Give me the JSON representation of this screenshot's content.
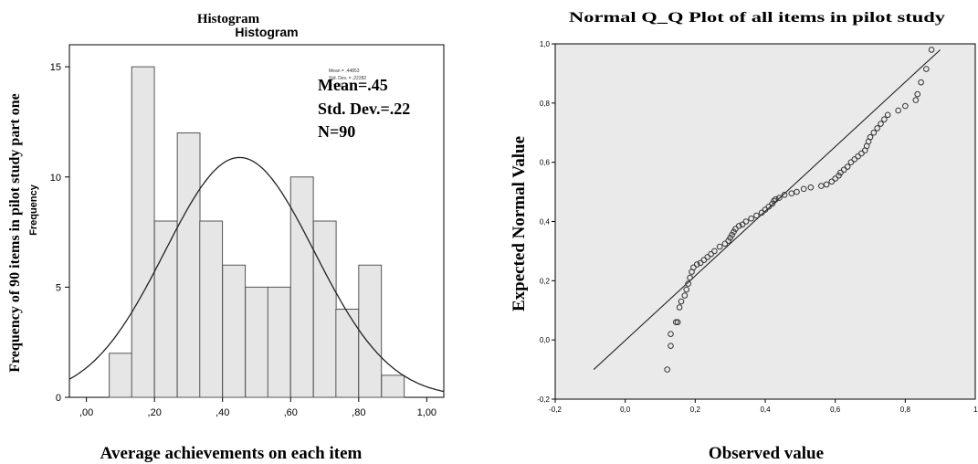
{
  "chart_data": [
    {
      "type": "bar",
      "subtype": "histogram",
      "title": "Histogram",
      "inner_title": "Histogram",
      "xlabel": "Average achievements on each item",
      "ylabel": "Frequency of 90 items in pilot study part one",
      "inner_ylabel": "Frequency",
      "xlim": [
        -0.05,
        1.05
      ],
      "ylim": [
        0,
        16
      ],
      "xticks": [
        0,
        0.2,
        0.4,
        0.6,
        0.8,
        1.0
      ],
      "xtick_labels": [
        ",00",
        ",20",
        ",40",
        ",60",
        ",80",
        "1,00"
      ],
      "yticks": [
        0,
        5,
        10,
        15
      ],
      "ytick_labels": [
        "0",
        "5",
        "10",
        "15"
      ],
      "bin_width": 0.0667,
      "bins": [
        {
          "start": 0.067,
          "value": 2
        },
        {
          "start": 0.133,
          "value": 15
        },
        {
          "start": 0.2,
          "value": 8
        },
        {
          "start": 0.267,
          "value": 12
        },
        {
          "start": 0.333,
          "value": 8
        },
        {
          "start": 0.4,
          "value": 6
        },
        {
          "start": 0.467,
          "value": 5
        },
        {
          "start": 0.533,
          "value": 5
        },
        {
          "start": 0.6,
          "value": 10
        },
        {
          "start": 0.667,
          "value": 8
        },
        {
          "start": 0.733,
          "value": 4
        },
        {
          "start": 0.8,
          "value": 6
        },
        {
          "start": 0.867,
          "value": 1
        }
      ],
      "normal_curve": {
        "mean": 0.45,
        "sd": 0.22,
        "n": 90
      },
      "annotations": [
        "Mean=.45",
        "Std. Dev.=.22",
        "N=90"
      ],
      "small_annotations": [
        "Mean = ,44853",
        "Std. Dev. = ,22282",
        "N = 90"
      ],
      "colors": {
        "bar_fill": "#e6e6e6",
        "bar_stroke": "#555555"
      }
    },
    {
      "type": "scatter",
      "subtype": "normal-qq",
      "title": "Normal Q_Q Plot of all items in pilot study",
      "xlabel": "Observed value",
      "ylabel": "Expected Normal Value",
      "xlim": [
        -0.2,
        1.0
      ],
      "ylim": [
        -0.2,
        1.0
      ],
      "xticks": [
        -0.2,
        0,
        0.2,
        0.4,
        0.6,
        0.8
      ],
      "xtick_labels": [
        "-0,2",
        "0,0",
        "0,2",
        "0,4",
        "0,6",
        "0,8"
      ],
      "xtick_cut_label": "1,",
      "yticks": [
        -0.2,
        0,
        0.2,
        0.4,
        0.6,
        0.8,
        1.0
      ],
      "ytick_labels": [
        "-0,2",
        "0,0",
        "0,2",
        "0,4",
        "0,6",
        "0,8",
        "1,0"
      ],
      "reference_line": {
        "from": [
          -0.09,
          -0.1
        ],
        "to": [
          0.9,
          0.98
        ]
      },
      "points": [
        [
          0.12,
          -0.1
        ],
        [
          0.13,
          -0.02
        ],
        [
          0.13,
          0.02
        ],
        [
          0.145,
          0.06
        ],
        [
          0.15,
          0.06
        ],
        [
          0.155,
          0.11
        ],
        [
          0.16,
          0.13
        ],
        [
          0.17,
          0.15
        ],
        [
          0.175,
          0.17
        ],
        [
          0.18,
          0.19
        ],
        [
          0.185,
          0.21
        ],
        [
          0.19,
          0.23
        ],
        [
          0.195,
          0.245
        ],
        [
          0.205,
          0.255
        ],
        [
          0.215,
          0.26
        ],
        [
          0.225,
          0.27
        ],
        [
          0.235,
          0.28
        ],
        [
          0.245,
          0.29
        ],
        [
          0.255,
          0.3
        ],
        [
          0.27,
          0.315
        ],
        [
          0.285,
          0.325
        ],
        [
          0.295,
          0.335
        ],
        [
          0.3,
          0.345
        ],
        [
          0.305,
          0.355
        ],
        [
          0.31,
          0.365
        ],
        [
          0.315,
          0.375
        ],
        [
          0.325,
          0.385
        ],
        [
          0.335,
          0.39
        ],
        [
          0.345,
          0.4
        ],
        [
          0.36,
          0.41
        ],
        [
          0.375,
          0.42
        ],
        [
          0.39,
          0.43
        ],
        [
          0.4,
          0.44
        ],
        [
          0.41,
          0.45
        ],
        [
          0.42,
          0.46
        ],
        [
          0.425,
          0.47
        ],
        [
          0.43,
          0.475
        ],
        [
          0.44,
          0.48
        ],
        [
          0.455,
          0.49
        ],
        [
          0.475,
          0.495
        ],
        [
          0.49,
          0.5
        ],
        [
          0.51,
          0.51
        ],
        [
          0.53,
          0.515
        ],
        [
          0.56,
          0.52
        ],
        [
          0.575,
          0.525
        ],
        [
          0.59,
          0.535
        ],
        [
          0.6,
          0.545
        ],
        [
          0.61,
          0.555
        ],
        [
          0.615,
          0.565
        ],
        [
          0.625,
          0.575
        ],
        [
          0.635,
          0.585
        ],
        [
          0.645,
          0.6
        ],
        [
          0.655,
          0.61
        ],
        [
          0.665,
          0.62
        ],
        [
          0.675,
          0.63
        ],
        [
          0.685,
          0.64
        ],
        [
          0.69,
          0.655
        ],
        [
          0.695,
          0.67
        ],
        [
          0.7,
          0.685
        ],
        [
          0.71,
          0.7
        ],
        [
          0.72,
          0.715
        ],
        [
          0.73,
          0.73
        ],
        [
          0.74,
          0.745
        ],
        [
          0.75,
          0.76
        ],
        [
          0.78,
          0.775
        ],
        [
          0.8,
          0.79
        ],
        [
          0.83,
          0.81
        ],
        [
          0.835,
          0.83
        ],
        [
          0.845,
          0.87
        ],
        [
          0.86,
          0.915
        ],
        [
          0.875,
          0.98
        ]
      ],
      "colors": {
        "plot_bg": "#eaeaea",
        "point_stroke": "#333333"
      }
    }
  ]
}
